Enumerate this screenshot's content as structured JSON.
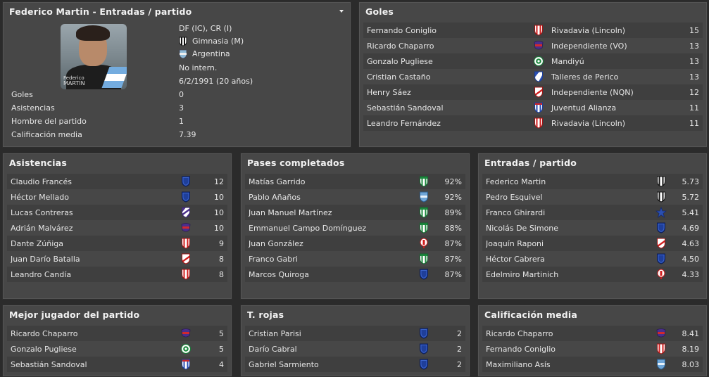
{
  "profile": {
    "title": "Federico Martin - Entradas / partido",
    "photo_first": "Federico",
    "photo_last": "MARTIN",
    "position": "DF (IC), CR (I)",
    "club": "Gimnasia (M)",
    "nation": "Argentina",
    "intl": "No intern.",
    "dob": "6/2/1991 (20 años)",
    "stats": [
      {
        "label": "Goles",
        "value": "0"
      },
      {
        "label": "Asistencias",
        "value": "3"
      },
      {
        "label": "Hombre del partido",
        "value": "1"
      },
      {
        "label": "Calificación media",
        "value": "7.39"
      }
    ]
  },
  "goles": {
    "title": "Goles",
    "rows": [
      {
        "name": "Fernando Coniglio",
        "club": "Rivadavia (Lincoln)",
        "value": "15",
        "icon": "red-white-stripes-shield-icon"
      },
      {
        "name": "Ricardo Chaparro",
        "club": "Independiente (VO)",
        "value": "13",
        "icon": "purple-red-crest-icon"
      },
      {
        "name": "Gonzalo Pugliese",
        "club": "Mandiyú",
        "value": "13",
        "icon": "green-white-round-crest-icon"
      },
      {
        "name": "Cristian Castaño",
        "club": "Talleres de Perico",
        "value": "13",
        "icon": "blue-white-diagonal-shield-icon"
      },
      {
        "name": "Henry Sáez",
        "club": "Independiente (NQN)",
        "value": "12",
        "icon": "red-white-diagonal-shield-icon"
      },
      {
        "name": "Sebastián Sandoval",
        "club": "Juventud Alianza",
        "value": "11",
        "icon": "blue-white-stripes-shield-icon"
      },
      {
        "name": "Leandro Fernández",
        "club": "Rivadavia (Lincoln)",
        "value": "11",
        "icon": "red-white-stripes-shield-icon"
      }
    ]
  },
  "asistencias": {
    "title": "Asistencias",
    "rows": [
      {
        "name": "Claudio Francés",
        "value": "12",
        "icon": "blue-shield-icon"
      },
      {
        "name": "Héctor Mellado",
        "value": "10",
        "icon": "blue-shield-icon"
      },
      {
        "name": "Lucas Contreras",
        "value": "10",
        "icon": "purple-white-diagonal-shield-icon"
      },
      {
        "name": "Adrián Malvárez",
        "value": "10",
        "icon": "purple-red-crest-icon"
      },
      {
        "name": "Dante Zúñiga",
        "value": "9",
        "icon": "red-white-stripes-shield-icon"
      },
      {
        "name": "Juan Darío Batalla",
        "value": "8",
        "icon": "red-white-diagonal-shield-icon"
      },
      {
        "name": "Leandro Candía",
        "value": "8",
        "icon": "red-white-stripes-shield-icon"
      }
    ]
  },
  "pases": {
    "title": "Pases completados",
    "rows": [
      {
        "name": "Matías Garrido",
        "value": "92%",
        "icon": "green-white-stripes-shield-icon"
      },
      {
        "name": "Pablo Añaños",
        "value": "92%",
        "icon": "light-blue-shield-icon"
      },
      {
        "name": "Juan Manuel Martínez",
        "value": "89%",
        "icon": "green-white-stripes-shield-icon"
      },
      {
        "name": "Emmanuel Campo Domínguez",
        "value": "88%",
        "icon": "green-white-stripes-shield-icon"
      },
      {
        "name": "Juan González",
        "value": "87%",
        "icon": "red-white-balloon-crest-icon"
      },
      {
        "name": "Franco Gabri",
        "value": "87%",
        "icon": "green-white-stripes-shield-icon"
      },
      {
        "name": "Marcos Quiroga",
        "value": "87%",
        "icon": "blue-shield-icon"
      }
    ]
  },
  "entradas": {
    "title": "Entradas / partido",
    "rows": [
      {
        "name": "Federico Martin",
        "value": "5.73",
        "icon": "black-white-stripes-shield-icon"
      },
      {
        "name": "Pedro Esquivel",
        "value": "5.72",
        "icon": "black-white-stripes-shield-icon"
      },
      {
        "name": "Franco Ghirardi",
        "value": "5.41",
        "icon": "blue-star-crest-icon"
      },
      {
        "name": "Nicolás De Simone",
        "value": "4.69",
        "icon": "blue-shield-icon"
      },
      {
        "name": "Joaquín Raponi",
        "value": "4.63",
        "icon": "red-white-diagonal-shield-icon"
      },
      {
        "name": "Héctor Cabrera",
        "value": "4.50",
        "icon": "blue-shield-icon"
      },
      {
        "name": "Edelmiro Martinich",
        "value": "4.33",
        "icon": "red-white-balloon-crest-icon"
      }
    ]
  },
  "mejor": {
    "title": "Mejor jugador del partido",
    "rows": [
      {
        "name": "Ricardo Chaparro",
        "value": "5",
        "icon": "purple-red-crest-icon"
      },
      {
        "name": "Gonzalo Pugliese",
        "value": "5",
        "icon": "green-white-round-crest-icon"
      },
      {
        "name": "Sebastián Sandoval",
        "value": "4",
        "icon": "blue-white-stripes-shield-icon"
      }
    ]
  },
  "rojas": {
    "title": "T. rojas",
    "rows": [
      {
        "name": "Cristian Parisi",
        "value": "2",
        "icon": "blue-shield-icon"
      },
      {
        "name": "Darío Cabral",
        "value": "2",
        "icon": "blue-shield-icon"
      },
      {
        "name": "Gabriel Sarmiento",
        "value": "2",
        "icon": "blue-shield-icon"
      }
    ]
  },
  "calif": {
    "title": "Calificación media",
    "rows": [
      {
        "name": "Ricardo Chaparro",
        "value": "8.41",
        "icon": "purple-red-crest-icon"
      },
      {
        "name": "Fernando Coniglio",
        "value": "8.19",
        "icon": "red-white-stripes-shield-icon"
      },
      {
        "name": "Maximiliano Asís",
        "value": "8.03",
        "icon": "light-blue-shield-icon"
      }
    ]
  }
}
